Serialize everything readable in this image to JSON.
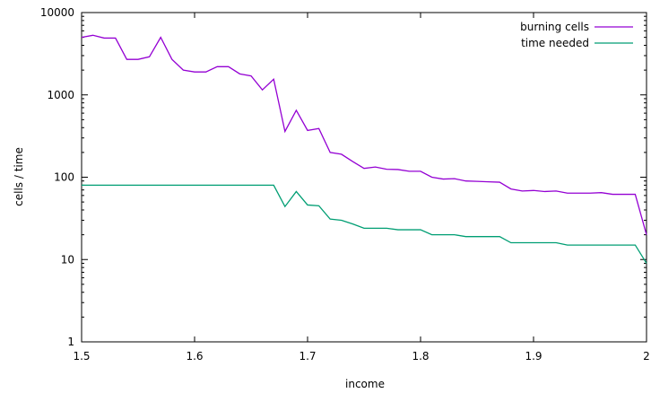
{
  "chart_data": {
    "type": "line",
    "xlabel": "income",
    "ylabel": "cells / time",
    "xlim": [
      1.5,
      2.0
    ],
    "ylim": [
      1,
      10000
    ],
    "yscale": "log",
    "x_ticks": [
      "1.5",
      "1.6",
      "1.7",
      "1.8",
      "1.9",
      "2"
    ],
    "y_ticks": [
      "1",
      "10",
      "100",
      "1000",
      "10000"
    ],
    "grid": false,
    "legend_position": "top-right",
    "x": [
      1.5,
      1.51,
      1.52,
      1.53,
      1.54,
      1.55,
      1.56,
      1.57,
      1.58,
      1.59,
      1.6,
      1.61,
      1.62,
      1.63,
      1.64,
      1.65,
      1.66,
      1.67,
      1.68,
      1.69,
      1.7,
      1.71,
      1.72,
      1.73,
      1.74,
      1.75,
      1.76,
      1.77,
      1.78,
      1.79,
      1.8,
      1.81,
      1.82,
      1.83,
      1.84,
      1.85,
      1.86,
      1.87,
      1.88,
      1.89,
      1.9,
      1.91,
      1.92,
      1.93,
      1.94,
      1.95,
      1.96,
      1.97,
      1.98,
      1.99,
      2.0
    ],
    "series": [
      {
        "name": "burning cells",
        "color": "#9400d3",
        "values": [
          5000,
          5300,
          4900,
          4900,
          2700,
          2700,
          2900,
          5000,
          2700,
          2000,
          1900,
          1900,
          2200,
          2200,
          1800,
          1700,
          1150,
          1550,
          360,
          650,
          370,
          390,
          200,
          190,
          155,
          128,
          133,
          125,
          124,
          118,
          118,
          100,
          95,
          96,
          90,
          89,
          88,
          87,
          72,
          68,
          69,
          67,
          68,
          64,
          64,
          64,
          65,
          62,
          62,
          62,
          20
        ]
      },
      {
        "name": "time needed",
        "color": "#009e73",
        "values": [
          80,
          80,
          80,
          80,
          80,
          80,
          80,
          80,
          80,
          80,
          80,
          80,
          80,
          80,
          80,
          80,
          80,
          80,
          44,
          67,
          46,
          45,
          31,
          30,
          27,
          24,
          24,
          24,
          23,
          23,
          23,
          20,
          20,
          20,
          19,
          19,
          19,
          19,
          16,
          16,
          16,
          16,
          16,
          15,
          15,
          15,
          15,
          15,
          15,
          15,
          9
        ]
      }
    ]
  }
}
